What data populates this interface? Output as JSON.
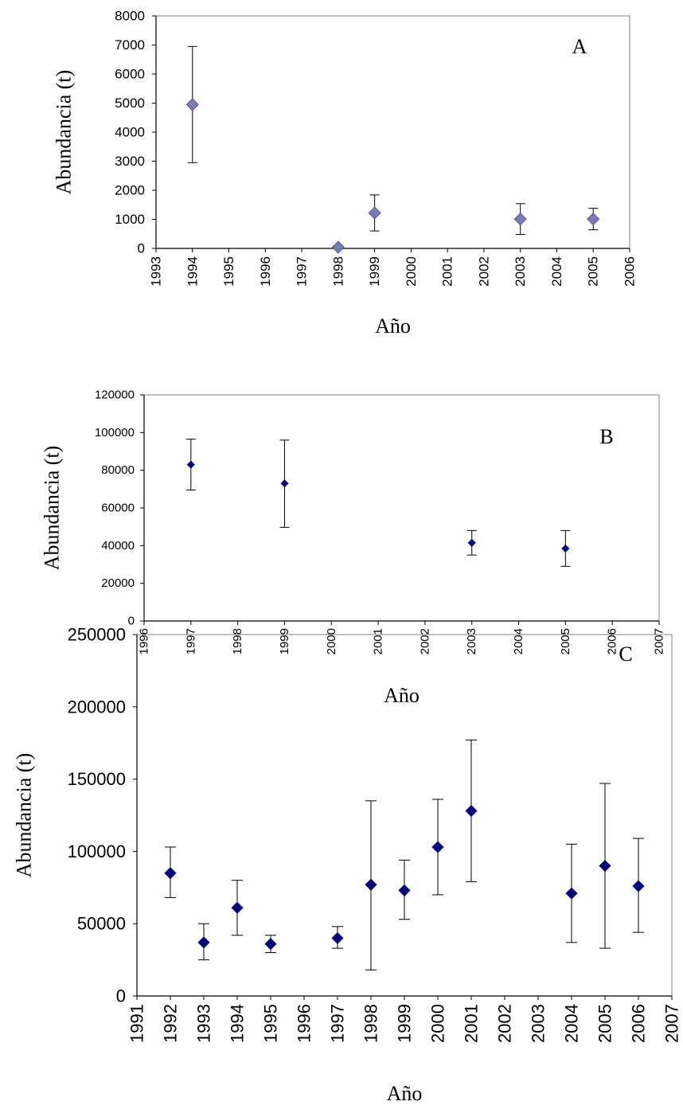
{
  "chart_data": [
    {
      "type": "scatter",
      "panel_label": "A",
      "xlabel": "Año",
      "ylabel": "Abundancia (t)",
      "xlim": [
        1993,
        2006
      ],
      "ylim": [
        0,
        8000
      ],
      "x_ticks": [
        1993,
        1994,
        1995,
        1996,
        1997,
        1998,
        1999,
        2000,
        2001,
        2002,
        2003,
        2004,
        2005,
        2006
      ],
      "y_ticks": [
        0,
        1000,
        2000,
        3000,
        4000,
        5000,
        6000,
        7000,
        8000
      ],
      "grid": false,
      "marker_color": "#7a7ab4",
      "points": [
        {
          "x": 1994,
          "y": 4950,
          "low": 2950,
          "high": 6950
        },
        {
          "x": 1998,
          "y": 40,
          "low": 40,
          "high": 40
        },
        {
          "x": 1999,
          "y": 1220,
          "low": 600,
          "high": 1840
        },
        {
          "x": 2003,
          "y": 1010,
          "low": 480,
          "high": 1540
        },
        {
          "x": 2005,
          "y": 1010,
          "low": 640,
          "high": 1380
        }
      ]
    },
    {
      "type": "scatter",
      "panel_label": "B",
      "xlabel": "Año",
      "ylabel": "Abundancia (t)",
      "xlim": [
        1996,
        2007
      ],
      "ylim": [
        0,
        120000
      ],
      "x_ticks": [
        1996,
        1997,
        1998,
        1999,
        2000,
        2001,
        2002,
        2003,
        2004,
        2005,
        2006,
        2007
      ],
      "y_ticks": [
        0,
        20000,
        40000,
        60000,
        80000,
        100000,
        120000
      ],
      "grid": false,
      "marker_color": "#00007a",
      "points": [
        {
          "x": 1997,
          "y": 83000,
          "low": 69500,
          "high": 96500
        },
        {
          "x": 1999,
          "y": 73000,
          "low": 49700,
          "high": 96000
        },
        {
          "x": 2003,
          "y": 41500,
          "low": 35000,
          "high": 48000
        },
        {
          "x": 2005,
          "y": 38500,
          "low": 29000,
          "high": 48000
        }
      ]
    },
    {
      "type": "scatter",
      "panel_label": "C",
      "xlabel": "Año",
      "ylabel": "Abundancia (t)",
      "xlim": [
        1991,
        2007
      ],
      "ylim": [
        0,
        250000
      ],
      "x_ticks": [
        1991,
        1992,
        1993,
        1994,
        1995,
        1996,
        1997,
        1998,
        1999,
        2000,
        2001,
        2002,
        2003,
        2004,
        2005,
        2006,
        2007
      ],
      "y_ticks": [
        0,
        50000,
        100000,
        150000,
        200000,
        250000
      ],
      "grid": false,
      "marker_color": "#00007a",
      "points": [
        {
          "x": 1992,
          "y": 85000,
          "low": 68000,
          "high": 103000
        },
        {
          "x": 1993,
          "y": 37000,
          "low": 25000,
          "high": 50000
        },
        {
          "x": 1994,
          "y": 61000,
          "low": 42000,
          "high": 80000
        },
        {
          "x": 1995,
          "y": 36000,
          "low": 30000,
          "high": 42000
        },
        {
          "x": 1997,
          "y": 40000,
          "low": 33000,
          "high": 48000
        },
        {
          "x": 1998,
          "y": 77000,
          "low": 18000,
          "high": 135000
        },
        {
          "x": 1999,
          "y": 73000,
          "low": 53000,
          "high": 94000
        },
        {
          "x": 2000,
          "y": 103000,
          "low": 70000,
          "high": 136000
        },
        {
          "x": 2001,
          "y": 128000,
          "low": 79000,
          "high": 177000
        },
        {
          "x": 2004,
          "y": 71000,
          "low": 37000,
          "high": 105000
        },
        {
          "x": 2005,
          "y": 90000,
          "low": 33000,
          "high": 147000
        },
        {
          "x": 2006,
          "y": 76000,
          "low": 44000,
          "high": 109000
        }
      ]
    }
  ]
}
